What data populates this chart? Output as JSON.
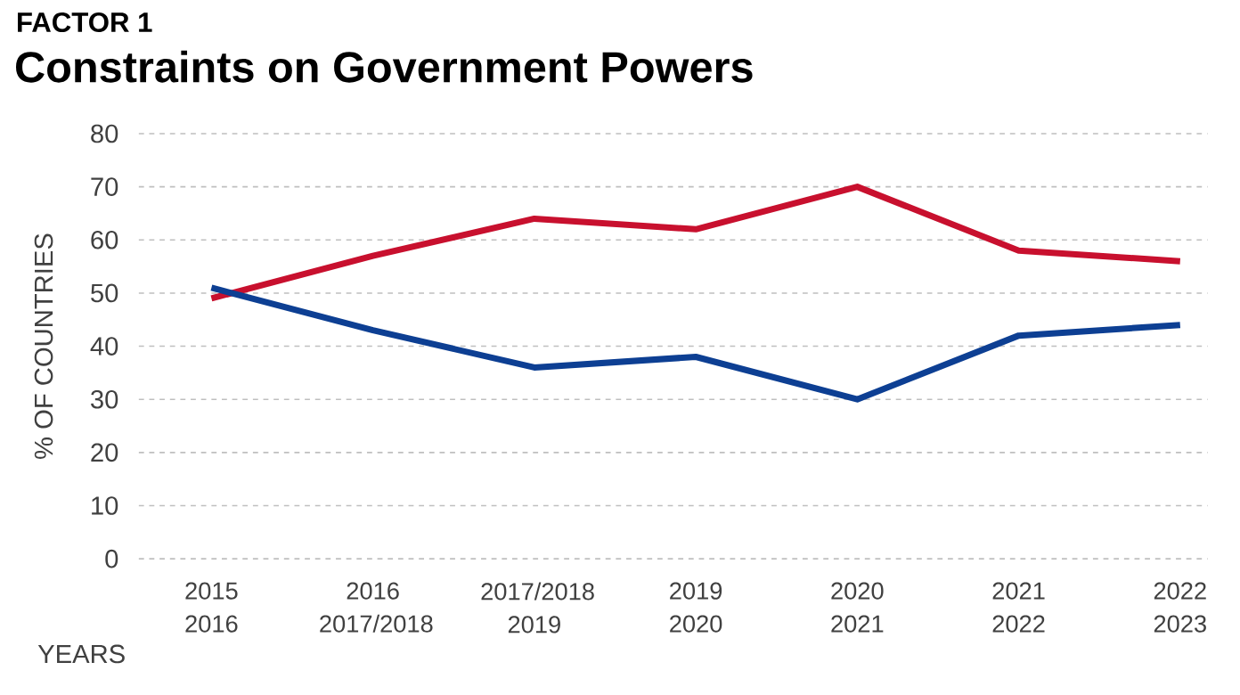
{
  "chart_data": {
    "type": "line",
    "title": "FACTOR 1",
    "subtitle": "Constraints on Government Powers",
    "xlabel": "YEARS",
    "ylabel": "% OF COUNTRIES",
    "categories": [
      "2015 2016",
      "2016 2017/2018",
      "2017/2018 2019",
      "2019 2020",
      "2020 2021",
      "2021 2022",
      "2022 2023"
    ],
    "series": [
      {
        "color": "#c8102e",
        "values": [
          49,
          57,
          64,
          62,
          70,
          58,
          56
        ]
      },
      {
        "color": "#0d3f93",
        "values": [
          51,
          43,
          36,
          38,
          30,
          42,
          44
        ]
      }
    ],
    "ylim": [
      0,
      80
    ],
    "yticks": [
      0,
      10,
      20,
      30,
      40,
      50,
      60,
      70,
      80
    ],
    "grid": "y",
    "line_style": "solid",
    "marker": "none"
  }
}
